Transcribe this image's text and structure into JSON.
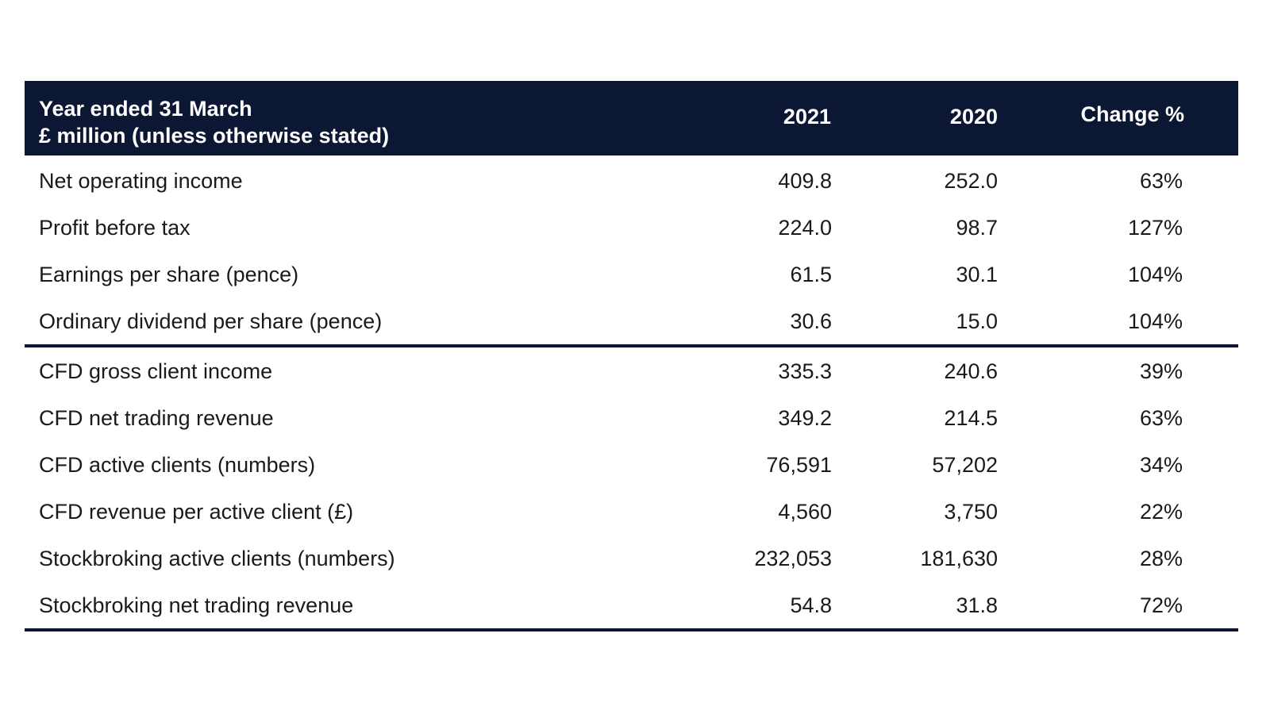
{
  "table": {
    "header": {
      "label_line1": "Year ended 31 March",
      "label_line2": "£ million (unless otherwise stated)",
      "col_2021": "2021",
      "col_2020": "2020",
      "col_change": "Change %"
    },
    "group1": [
      {
        "name": "Net operating income",
        "v2021": "409.8",
        "v2020": "252.0",
        "change": "63%"
      },
      {
        "name": "Profit before tax",
        "v2021": "224.0",
        "v2020": "98.7",
        "change": "127%"
      },
      {
        "name": "Earnings per share (pence)",
        "v2021": "61.5",
        "v2020": "30.1",
        "change": "104%"
      },
      {
        "name": "Ordinary dividend per share (pence)",
        "v2021": "30.6",
        "v2020": "15.0",
        "change": "104%"
      }
    ],
    "group2": [
      {
        "name": "CFD gross client income",
        "v2021": "335.3",
        "v2020": "240.6",
        "change": "39%"
      },
      {
        "name": "CFD net trading revenue",
        "v2021": "349.2",
        "v2020": "214.5",
        "change": "63%"
      },
      {
        "name": "CFD active clients (numbers)",
        "v2021": "76,591",
        "v2020": "57,202",
        "change": "34%"
      },
      {
        "name": "CFD revenue per active client (£)",
        "v2021": "4,560",
        "v2020": "3,750",
        "change": "22%"
      },
      {
        "name": "Stockbroking active clients (numbers)",
        "v2021": "232,053",
        "v2020": "181,630",
        "change": "28%"
      },
      {
        "name": "Stockbroking net trading revenue",
        "v2021": "54.8",
        "v2020": "31.8",
        "change": "72%"
      }
    ],
    "colors": {
      "header_bg": "#0b1733",
      "header_text": "#ffffff",
      "body_text": "#1a1a1a",
      "rule": "#0b1733"
    }
  }
}
